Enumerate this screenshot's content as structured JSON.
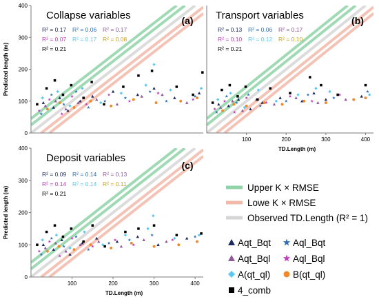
{
  "legend_lines": [
    {
      "label": "Upper K × RMSE",
      "color": "#8fd3a8"
    },
    {
      "label": "Lowe K × RMSE",
      "color": "#f2b8a8"
    },
    {
      "label": "Observed TD.Length (R² = 1)",
      "color": "#d6d6d6"
    }
  ],
  "legend_markers": [
    {
      "label": "Aqt_Bqt",
      "color": "#1f2a5e",
      "marker": "triangle"
    },
    {
      "label": "Aql_Bqt",
      "color": "#2e6fb8",
      "marker": "star"
    },
    {
      "label": "Aqt_Bql",
      "color": "#8e5a9a",
      "marker": "triangle"
    },
    {
      "label": "Aql_Bql",
      "color": "#c23cc2",
      "marker": "star"
    },
    {
      "label": "A(qt_ql)",
      "color": "#5ac8f0",
      "marker": "diamond"
    },
    {
      "label": "B(qt_ql)",
      "color": "#ee8a2a",
      "marker": "circle"
    },
    {
      "label": "4_comb",
      "color": "#000000",
      "marker": "square"
    }
  ],
  "chart_data": [
    {
      "type": "scatter",
      "title": "Collapse variables",
      "panel_label": "(a)",
      "xlabel": "",
      "ylabel": "Predicted length (m)",
      "xlim": [
        0,
        420
      ],
      "ylim": [
        0,
        400
      ],
      "xticks": [],
      "yticks": [
        0,
        100,
        200,
        300,
        400
      ],
      "r2": [
        {
          "text": "R² = 0.17",
          "color": "#1f2a5e"
        },
        {
          "text": "R² = 0.06",
          "color": "#2e6fb8"
        },
        {
          "text": "R² = 0.17",
          "color": "#8e5a9a"
        },
        {
          "text": "R² = 0.07",
          "color": "#c23cc2"
        },
        {
          "text": "R² = 0.17",
          "color": "#5ac8f0"
        },
        {
          "text": "R² = 0.08",
          "color": "#c9a227"
        },
        {
          "text": "R² = 0.21",
          "color": "#000000"
        }
      ],
      "series": [
        {
          "name": "Aqt_Bqt",
          "points": [
            [
              30,
              95
            ],
            [
              55,
              80
            ],
            [
              70,
              110
            ],
            [
              90,
              70
            ],
            [
              120,
              100
            ],
            [
              150,
              115
            ],
            [
              200,
              130
            ],
            [
              260,
              120
            ],
            [
              300,
              140
            ],
            [
              350,
              110
            ],
            [
              410,
              125
            ]
          ]
        },
        {
          "name": "Aql_Bqt",
          "points": [
            [
              25,
              60
            ],
            [
              50,
              120
            ],
            [
              80,
              90
            ],
            [
              110,
              130
            ],
            [
              140,
              80
            ],
            [
              180,
              100
            ],
            [
              230,
              110
            ],
            [
              290,
              130
            ],
            [
              330,
              100
            ],
            [
              400,
              115
            ]
          ]
        },
        {
          "name": "Aqt_Bql",
          "points": [
            [
              35,
              85
            ],
            [
              60,
              100
            ],
            [
              85,
              75
            ],
            [
              115,
              95
            ],
            [
              160,
              105
            ],
            [
              210,
              90
            ],
            [
              270,
              115
            ],
            [
              320,
              120
            ],
            [
              380,
              95
            ]
          ]
        },
        {
          "name": "Aql_Bql",
          "points": [
            [
              20,
              70
            ],
            [
              45,
              105
            ],
            [
              75,
              60
            ],
            [
              100,
              115
            ],
            [
              135,
              90
            ],
            [
              190,
              120
            ],
            [
              240,
              100
            ],
            [
              310,
              125
            ],
            [
              395,
              105
            ]
          ]
        },
        {
          "name": "A(qt_ql)",
          "points": [
            [
              28,
              110
            ],
            [
              65,
              130
            ],
            [
              95,
              85
            ],
            [
              125,
              140
            ],
            [
              170,
              95
            ],
            [
              220,
              125
            ],
            [
              280,
              150
            ],
            [
              300,
              215
            ],
            [
              340,
              135
            ],
            [
              415,
              140
            ]
          ]
        },
        {
          "name": "B(qt_ql)",
          "points": [
            [
              40,
              75
            ],
            [
              70,
              95
            ],
            [
              105,
              80
            ],
            [
              145,
              100
            ],
            [
              195,
              85
            ],
            [
              250,
              105
            ],
            [
              305,
              95
            ],
            [
              365,
              100
            ],
            [
              405,
              110
            ]
          ]
        },
        {
          "name": "4_comb",
          "points": [
            [
              15,
              90
            ],
            [
              38,
              140
            ],
            [
              58,
              165
            ],
            [
              78,
              120
            ],
            [
              98,
              150
            ],
            [
              128,
              110
            ],
            [
              148,
              160
            ],
            [
              178,
              90
            ],
            [
              225,
              145
            ],
            [
              262,
              180
            ],
            [
              295,
              195
            ],
            [
              355,
              145
            ],
            [
              395,
              120
            ],
            [
              418,
              190
            ]
          ]
        }
      ]
    },
    {
      "type": "scatter",
      "title": "Transport variables",
      "panel_label": "(b)",
      "xlabel": "TD.Length (m)",
      "ylabel": "",
      "xlim": [
        0,
        420
      ],
      "ylim": [
        0,
        400
      ],
      "xticks": [
        100,
        200,
        300,
        400
      ],
      "yticks": [],
      "r2": [
        {
          "text": "R² = 0.13",
          "color": "#1f2a5e"
        },
        {
          "text": "R² = 0.06",
          "color": "#2e6fb8"
        },
        {
          "text": "R² = 0.17",
          "color": "#8e5a9a"
        },
        {
          "text": "R² = 0.10",
          "color": "#c23cc2"
        },
        {
          "text": "R² = 0.12",
          "color": "#5ac8f0"
        },
        {
          "text": "R² = 0.10",
          "color": "#c9a227"
        },
        {
          "text": "R² = 0.21",
          "color": "#000000"
        }
      ],
      "series": [
        {
          "name": "Aqt_Bqt",
          "points": [
            [
              30,
              90
            ],
            [
              55,
              85
            ],
            [
              80,
              105
            ],
            [
              110,
              75
            ],
            [
              140,
              95
            ],
            [
              185,
              110
            ],
            [
              240,
              100
            ],
            [
              270,
              125
            ],
            [
              300,
              105
            ],
            [
              390,
              115
            ]
          ]
        },
        {
          "name": "Aql_Bqt",
          "points": [
            [
              25,
              65
            ],
            [
              50,
              115
            ],
            [
              75,
              95
            ],
            [
              105,
              120
            ],
            [
              135,
              85
            ],
            [
              200,
              100
            ],
            [
              255,
              120
            ],
            [
              320,
              110
            ],
            [
              405,
              130
            ]
          ]
        },
        {
          "name": "Aqt_Bql",
          "points": [
            [
              35,
              80
            ],
            [
              65,
              100
            ],
            [
              90,
              70
            ],
            [
              125,
              105
            ],
            [
              170,
              90
            ],
            [
              225,
              110
            ],
            [
              280,
              95
            ],
            [
              350,
              105
            ]
          ]
        },
        {
          "name": "Aql_Bql",
          "points": [
            [
              20,
              75
            ],
            [
              45,
              100
            ],
            [
              70,
              65
            ],
            [
              100,
              110
            ],
            [
              150,
              95
            ],
            [
              210,
              115
            ],
            [
              265,
              100
            ],
            [
              335,
              120
            ]
          ]
        },
        {
          "name": "A(qt_ql)",
          "points": [
            [
              28,
              105
            ],
            [
              60,
              125
            ],
            [
              95,
              80
            ],
            [
              130,
              135
            ],
            [
              175,
              100
            ],
            [
              230,
              120
            ],
            [
              275,
              140
            ],
            [
              310,
              130
            ],
            [
              410,
              120
            ]
          ]
        },
        {
          "name": "B(qt_ql)",
          "points": [
            [
              40,
              70
            ],
            [
              68,
              90
            ],
            [
              100,
              85
            ],
            [
              145,
              95
            ],
            [
              190,
              90
            ],
            [
              245,
              100
            ],
            [
              300,
              95
            ],
            [
              370,
              105
            ],
            [
              400,
              110
            ]
          ]
        },
        {
          "name": "4_comb",
          "points": [
            [
              15,
              95
            ],
            [
              38,
              135
            ],
            [
              58,
              150
            ],
            [
              78,
              115
            ],
            [
              98,
              145
            ],
            [
              128,
              105
            ],
            [
              160,
              140
            ],
            [
              210,
              125
            ],
            [
              260,
              175
            ],
            [
              288,
              150
            ],
            [
              330,
              120
            ],
            [
              400,
              150
            ]
          ]
        }
      ]
    },
    {
      "type": "scatter",
      "title": "Deposit variables",
      "panel_label": "(c)",
      "xlabel": "TD.Length (m)",
      "ylabel": "Predicted length (m)",
      "xlim": [
        0,
        420
      ],
      "ylim": [
        0,
        400
      ],
      "xticks": [
        100,
        200,
        300,
        400
      ],
      "yticks": [
        0,
        100,
        200,
        300,
        400
      ],
      "r2": [
        {
          "text": "R² = 0.09",
          "color": "#1f2a5e"
        },
        {
          "text": "R² = 0.14",
          "color": "#2e6fb8"
        },
        {
          "text": "R² = 0.13",
          "color": "#8e5a9a"
        },
        {
          "text": "R² = 0.14",
          "color": "#c23cc2"
        },
        {
          "text": "R² = 0.14",
          "color": "#5ac8f0"
        },
        {
          "text": "R² = 0.11",
          "color": "#c9a227"
        },
        {
          "text": "R² = 0.21",
          "color": "#000000"
        }
      ],
      "series": [
        {
          "name": "Aqt_Bqt",
          "points": [
            [
              30,
              100
            ],
            [
              55,
              85
            ],
            [
              75,
              115
            ],
            [
              95,
              70
            ],
            [
              125,
              105
            ],
            [
              160,
              120
            ],
            [
              210,
              110
            ],
            [
              260,
              125
            ],
            [
              310,
              100
            ],
            [
              380,
              120
            ]
          ]
        },
        {
          "name": "Aql_Bqt",
          "points": [
            [
              25,
              70
            ],
            [
              50,
              120
            ],
            [
              80,
              95
            ],
            [
              110,
              125
            ],
            [
              140,
              85
            ],
            [
              190,
              105
            ],
            [
              240,
              115
            ],
            [
              295,
              130
            ],
            [
              400,
              125
            ]
          ]
        },
        {
          "name": "Aqt_Bql",
          "points": [
            [
              35,
              90
            ],
            [
              60,
              105
            ],
            [
              85,
              80
            ],
            [
              120,
              100
            ],
            [
              165,
              110
            ],
            [
              220,
              95
            ],
            [
              275,
              115
            ],
            [
              330,
              110
            ]
          ]
        },
        {
          "name": "Aql_Bql",
          "points": [
            [
              20,
              80
            ],
            [
              45,
              110
            ],
            [
              70,
              65
            ],
            [
              100,
              120
            ],
            [
              150,
              95
            ],
            [
              205,
              115
            ],
            [
              250,
              100
            ],
            [
              345,
              115
            ]
          ]
        },
        {
          "name": "A(qt_ql)",
          "points": [
            [
              28,
              115
            ],
            [
              62,
              130
            ],
            [
              95,
              90
            ],
            [
              130,
              140
            ],
            [
              175,
              100
            ],
            [
              230,
              130
            ],
            [
              285,
              150
            ],
            [
              298,
              190
            ],
            [
              350,
              120
            ],
            [
              410,
              130
            ]
          ]
        },
        {
          "name": "B(qt_ql)",
          "points": [
            [
              40,
              80
            ],
            [
              68,
              95
            ],
            [
              105,
              85
            ],
            [
              145,
              100
            ],
            [
              195,
              90
            ],
            [
              245,
              105
            ],
            [
              300,
              95
            ],
            [
              360,
              100
            ],
            [
              405,
              110
            ]
          ]
        },
        {
          "name": "4_comb",
          "points": [
            [
              15,
              100
            ],
            [
              38,
              140
            ],
            [
              58,
              160
            ],
            [
              78,
              125
            ],
            [
              98,
              150
            ],
            [
              128,
              110
            ],
            [
              150,
              160
            ],
            [
              180,
              95
            ],
            [
              230,
              140
            ],
            [
              262,
              150
            ],
            [
              300,
              160
            ],
            [
              355,
              130
            ],
            [
              415,
              135
            ]
          ]
        }
      ]
    }
  ]
}
